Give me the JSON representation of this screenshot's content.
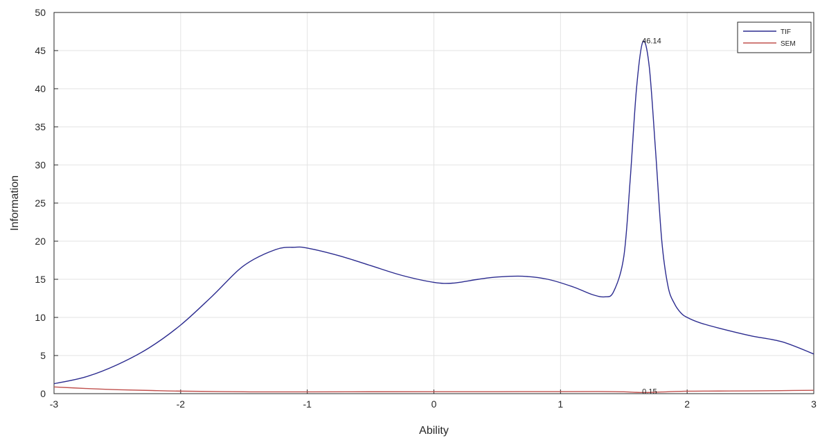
{
  "chart_data": {
    "type": "line",
    "title": "",
    "xlabel": "Ability",
    "ylabel": "Information",
    "xlim": [
      -3,
      3
    ],
    "ylim": [
      0,
      50
    ],
    "xticks": [
      -3,
      -2,
      -1,
      0,
      1,
      2,
      3
    ],
    "yticks": [
      0,
      5,
      10,
      15,
      20,
      25,
      30,
      35,
      40,
      45,
      50
    ],
    "grid": true,
    "legend": "top-right",
    "series": [
      {
        "name": "TIF",
        "color": "#2b2b8f",
        "x": [
          -3,
          -2.75,
          -2.5,
          -2.25,
          -2,
          -1.75,
          -1.5,
          -1.25,
          -1.1,
          -1,
          -0.75,
          -0.5,
          -0.25,
          0,
          0.15,
          0.35,
          0.5,
          0.7,
          0.9,
          1.1,
          1.25,
          1.35,
          1.42,
          1.5,
          1.55,
          1.6,
          1.65,
          1.7,
          1.75,
          1.8,
          1.85,
          1.9,
          1.95,
          2.0,
          2.1,
          2.25,
          2.5,
          2.75,
          3
        ],
        "y": [
          1.3,
          2.2,
          3.8,
          6.0,
          9.0,
          12.8,
          16.8,
          18.9,
          19.2,
          19.1,
          18.1,
          16.8,
          15.5,
          14.6,
          14.5,
          15.0,
          15.3,
          15.4,
          15.0,
          14.0,
          13.0,
          12.7,
          13.4,
          18.0,
          28.0,
          40.0,
          46.14,
          43.0,
          32.0,
          20.0,
          14.0,
          11.8,
          10.6,
          10.0,
          9.3,
          8.6,
          7.6,
          6.8,
          5.2
        ]
      },
      {
        "name": "SEM",
        "color": "#c0504d",
        "x": [
          -3,
          -2.75,
          -2.5,
          -2.25,
          -2,
          -1.5,
          -1,
          -0.5,
          0,
          0.5,
          1,
          1.3,
          1.5,
          1.6,
          1.65,
          1.7,
          1.8,
          2,
          2.25,
          2.5,
          3
        ],
        "y": [
          0.88,
          0.68,
          0.52,
          0.42,
          0.33,
          0.24,
          0.23,
          0.25,
          0.26,
          0.26,
          0.27,
          0.28,
          0.24,
          0.17,
          0.15,
          0.16,
          0.22,
          0.32,
          0.34,
          0.36,
          0.44
        ]
      }
    ],
    "annotations": [
      {
        "text": "46.14",
        "x": 1.65,
        "y": 46.14,
        "series": "TIF"
      },
      {
        "text": "0.15",
        "x": 1.65,
        "y": 0.15,
        "series": "SEM"
      }
    ]
  }
}
